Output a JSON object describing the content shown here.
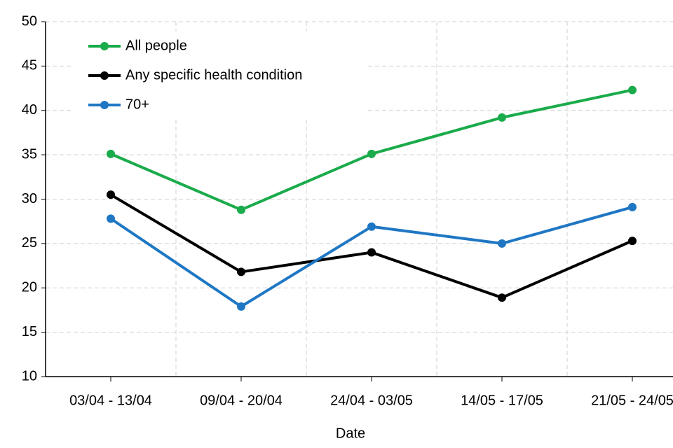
{
  "chart_data": {
    "type": "line",
    "x_label": "Date",
    "categories": [
      "03/04 - 13/04",
      "09/04 - 20/04",
      "24/04 - 03/05",
      "14/05 - 17/05",
      "21/05 - 24/05"
    ],
    "series": [
      {
        "name": "All people",
        "color": "#1aab4b",
        "values": [
          35.1,
          28.8,
          35.1,
          39.2,
          42.3
        ]
      },
      {
        "name": "Any specific health condition",
        "color": "#000000",
        "values": [
          30.5,
          21.8,
          24.0,
          18.9,
          25.3
        ]
      },
      {
        "name": "70+",
        "color": "#1f77c4",
        "values": [
          27.8,
          17.9,
          26.9,
          25.0,
          29.1
        ]
      }
    ],
    "ylim": [
      10,
      50
    ],
    "yticks": [
      10,
      15,
      20,
      25,
      30,
      35,
      40,
      45,
      50
    ],
    "grid": true
  }
}
